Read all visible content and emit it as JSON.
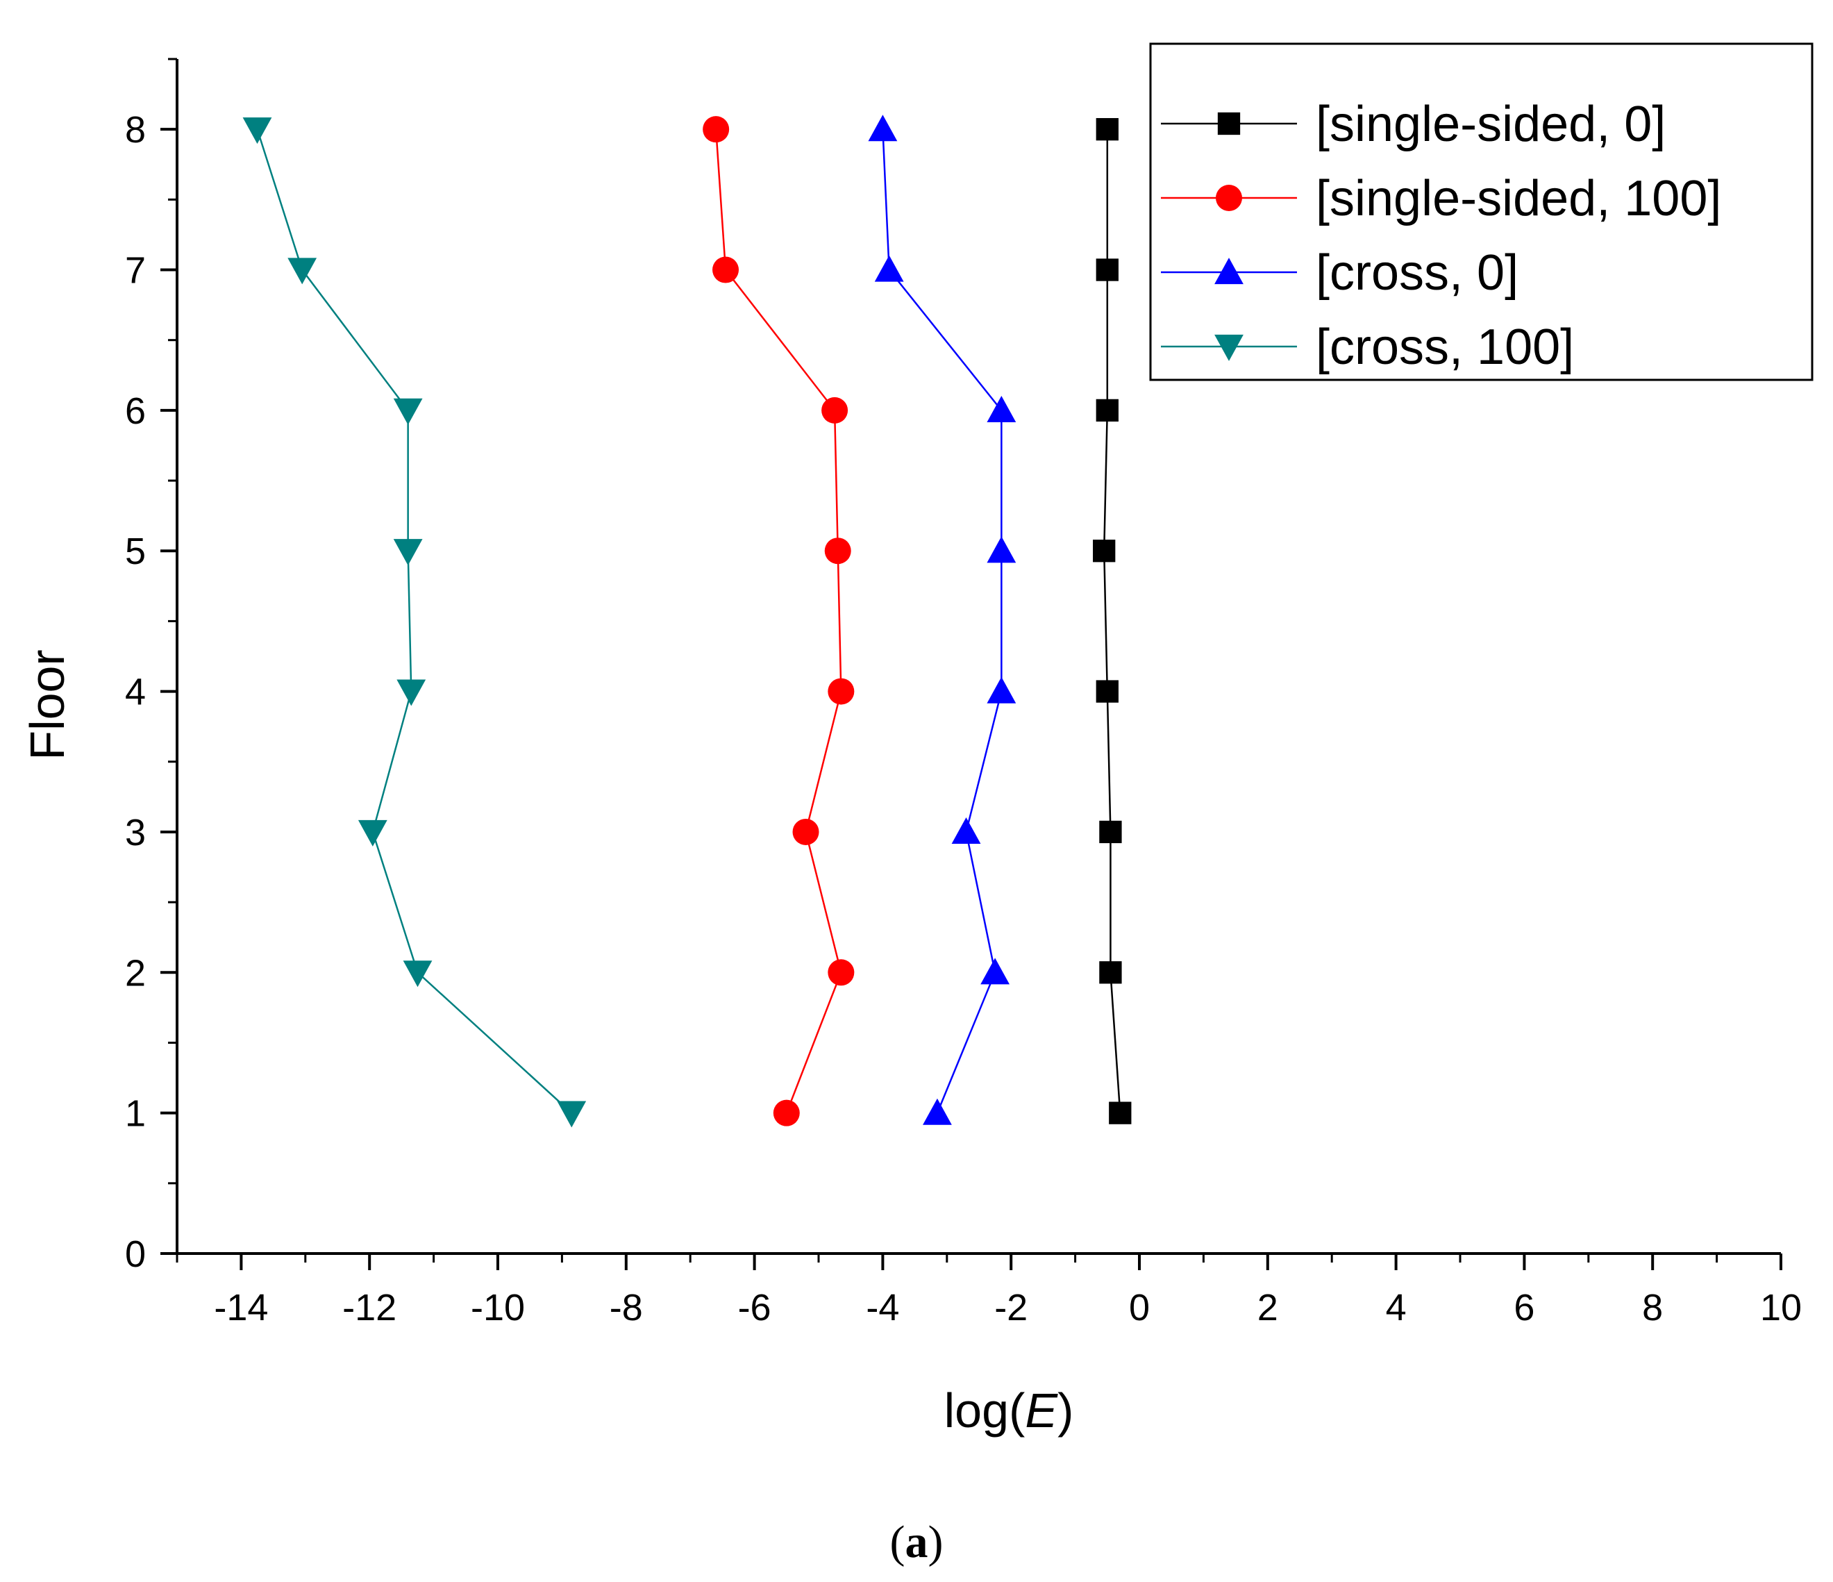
{
  "chart_data": {
    "type": "line",
    "title": "",
    "xlabel_prefix": "log(",
    "xlabel_var": "E",
    "xlabel_suffix": ")",
    "ylabel": "Floor",
    "xlim": [
      -15,
      10
    ],
    "ylim": [
      0,
      8.5
    ],
    "xticks": [
      -14,
      -12,
      -10,
      -8,
      -6,
      -4,
      -2,
      0,
      2,
      4,
      6,
      8,
      10
    ],
    "xtick_labels": [
      "-14",
      "-12",
      "-10",
      "-8",
      "-6",
      "-4",
      "-2",
      "0",
      "2",
      "4",
      "6",
      "8",
      "10"
    ],
    "yticks": [
      0,
      1,
      2,
      3,
      4,
      5,
      6,
      7,
      8
    ],
    "ytick_labels": [
      "0",
      "1",
      "2",
      "3",
      "4",
      "5",
      "6",
      "7",
      "8"
    ],
    "legend_position": "top-right",
    "series": [
      {
        "name": "[single-sided, 0]",
        "color": "#000000",
        "marker": "square",
        "x": [
          -0.3,
          -0.45,
          -0.45,
          -0.5,
          -0.55,
          -0.5,
          -0.5,
          -0.5
        ],
        "y": [
          1,
          2,
          3,
          4,
          5,
          6,
          7,
          8
        ]
      },
      {
        "name": "[single-sided, 100]",
        "color": "#ff0000",
        "marker": "circle",
        "x": [
          -5.5,
          -4.65,
          -5.2,
          -4.65,
          -4.7,
          -4.75,
          -6.45,
          -6.6
        ],
        "y": [
          1,
          2,
          3,
          4,
          5,
          6,
          7,
          8
        ]
      },
      {
        "name": "[cross, 0]",
        "color": "#0000ff",
        "marker": "triangle-up",
        "x": [
          -3.15,
          -2.25,
          -2.7,
          -2.15,
          -2.15,
          -2.15,
          -3.9,
          -4.0
        ],
        "y": [
          1,
          2,
          3,
          4,
          5,
          6,
          7,
          8
        ]
      },
      {
        "name": "[cross, 100]",
        "color": "#008080",
        "marker": "triangle-down",
        "x": [
          -8.85,
          -11.25,
          -11.95,
          -11.35,
          -11.4,
          -11.4,
          -13.05,
          -13.75
        ],
        "y": [
          1,
          2,
          3,
          4,
          5,
          6,
          7,
          8
        ]
      }
    ]
  },
  "caption": {
    "open": "(",
    "letter": "a",
    "close": ")"
  }
}
